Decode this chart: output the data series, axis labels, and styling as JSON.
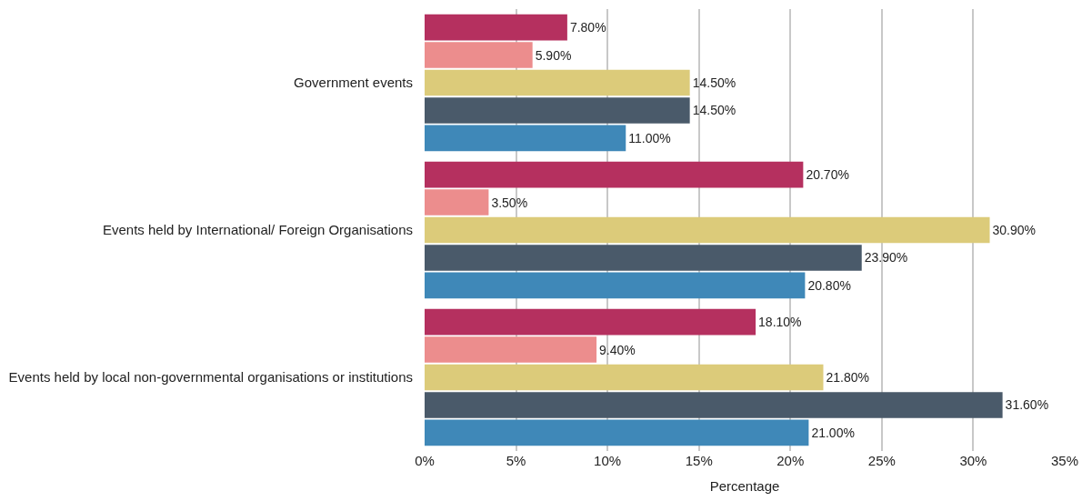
{
  "chart_data": {
    "type": "bar",
    "orientation": "horizontal",
    "xlabel": "Percentage",
    "categories": [
      "Government events",
      "Events held by International/ Foreign Organisations",
      "Events held by local non-governmental organisations or institutions"
    ],
    "series": [
      {
        "color": "#b5305f",
        "values": [
          7.8,
          20.7,
          18.1
        ],
        "value_labels": [
          "7.80%",
          "20.70%",
          "18.10%"
        ]
      },
      {
        "color": "#ec8d8d",
        "values": [
          5.9,
          3.5,
          9.4
        ],
        "value_labels": [
          "5.90%",
          "3.50%",
          "9.40%"
        ]
      },
      {
        "color": "#dccb7a",
        "values": [
          14.5,
          30.9,
          21.8
        ],
        "value_labels": [
          "14.50%",
          "30.90%",
          "21.80%"
        ]
      },
      {
        "color": "#4a5a6a",
        "values": [
          14.5,
          23.9,
          31.6
        ],
        "value_labels": [
          "14.50%",
          "23.90%",
          "31.60%"
        ]
      },
      {
        "color": "#3f88b8",
        "values": [
          11.0,
          20.8,
          21.0
        ],
        "value_labels": [
          "11.00%",
          "20.80%",
          "21.00%"
        ]
      }
    ],
    "xlim": [
      0,
      35
    ],
    "xticks": [
      {
        "value": 0,
        "label": "0%"
      },
      {
        "value": 5,
        "label": "5%"
      },
      {
        "value": 10,
        "label": "10%"
      },
      {
        "value": 15,
        "label": "15%"
      },
      {
        "value": 20,
        "label": "20%"
      },
      {
        "value": 25,
        "label": "25%"
      },
      {
        "value": 30,
        "label": "30%"
      },
      {
        "value": 35,
        "label": "35%"
      }
    ],
    "grid": "x",
    "legend": false
  }
}
